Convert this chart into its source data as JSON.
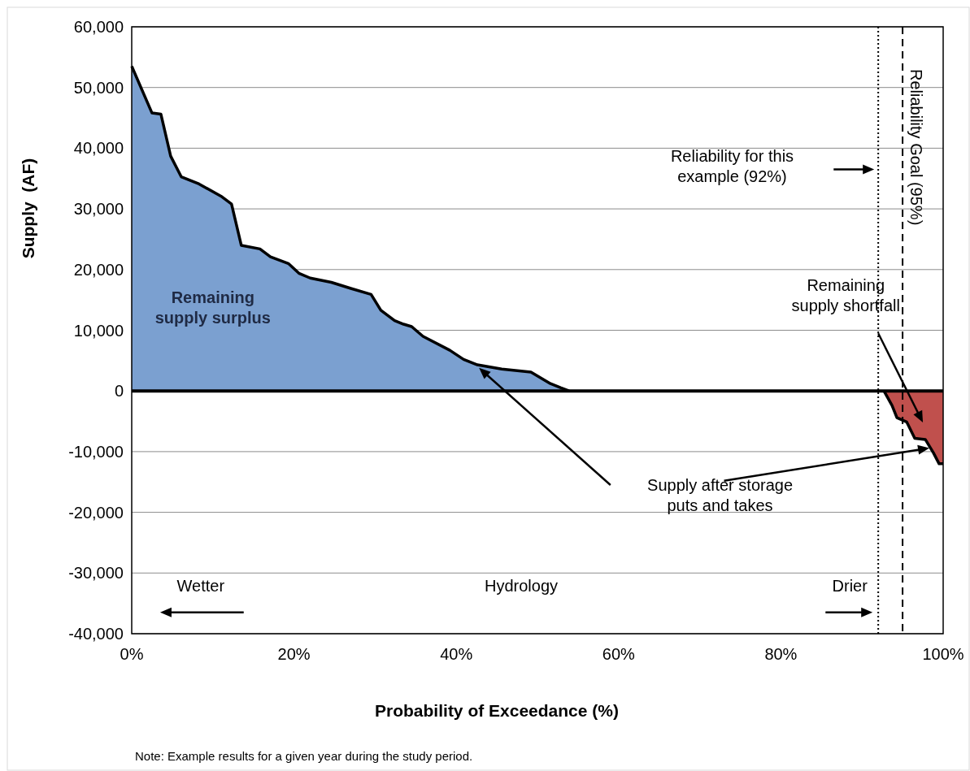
{
  "chart_data": {
    "type": "area",
    "xlabel": "Probability of Exceedance (%)",
    "ylabel": "Supply  (AF)",
    "xlim": [
      0,
      100
    ],
    "ylim": [
      -40000,
      60000
    ],
    "xticks": [
      {
        "value": 0,
        "label": "0%"
      },
      {
        "value": 20,
        "label": "20%"
      },
      {
        "value": 40,
        "label": "40%"
      },
      {
        "value": 60,
        "label": "60%"
      },
      {
        "value": 80,
        "label": "80%"
      },
      {
        "value": 100,
        "label": "100%"
      }
    ],
    "yticks": [
      {
        "value": -40000,
        "label": "-40,000"
      },
      {
        "value": -30000,
        "label": "-30,000"
      },
      {
        "value": -20000,
        "label": "-20,000"
      },
      {
        "value": -10000,
        "label": "-10,000"
      },
      {
        "value": 0,
        "label": "0"
      },
      {
        "value": 10000,
        "label": "10,000"
      },
      {
        "value": 20000,
        "label": "20,000"
      },
      {
        "value": 30000,
        "label": "30,000"
      },
      {
        "value": 40000,
        "label": "40,000"
      },
      {
        "value": 50000,
        "label": "50,000"
      },
      {
        "value": 60000,
        "label": "60,000"
      }
    ],
    "grid": "y",
    "series": [
      {
        "color": "#7ba0d0",
        "x": [
          0,
          2.5,
          3.6,
          4.8,
          6.1,
          8.3,
          11,
          12.3,
          13.5,
          15.8,
          17.1,
          19.3,
          20.6,
          22,
          24.6,
          27,
          29.5,
          30.7,
          32.4,
          33.5,
          34.5,
          35.9,
          39.2,
          40.9,
          42.6,
          45.6,
          49.2,
          51.6,
          52.9,
          53.9
        ],
        "values": [
          53500,
          45800,
          45600,
          38700,
          35300,
          34100,
          32100,
          30800,
          24000,
          23400,
          22100,
          21000,
          19400,
          18600,
          17900,
          16900,
          15900,
          13300,
          11600,
          11000,
          10600,
          9000,
          6700,
          5200,
          4300,
          3600,
          3100,
          1200,
          500,
          0
        ]
      },
      {
        "color": "#c0504d",
        "x": [
          92.7,
          93.7,
          94.3,
          95.5,
          96.5,
          97.8,
          98.8,
          99.5,
          100
        ],
        "values": [
          0,
          -2400,
          -4400,
          -5100,
          -7800,
          -8000,
          -10200,
          -12000,
          -12000
        ]
      }
    ],
    "ref_lines": [
      {
        "axis": "y",
        "value": 0,
        "color": "#000000",
        "line_style": "solid"
      },
      {
        "axis": "x",
        "value": 92,
        "color": "#000000",
        "line_style": "dotted"
      },
      {
        "axis": "x",
        "value": 95,
        "label": "Reliability Goal (95%)",
        "color": "#000000",
        "line_style": "dashed"
      }
    ],
    "annotations": [
      "Remaining supply surplus",
      "Remaining supply shortfall",
      "Supply after storage puts and takes",
      "Wetter",
      "Hydrology",
      "Drier",
      "Note:  Example results for a given year during the study period.",
      "Reliability for this example (92%)"
    ]
  }
}
